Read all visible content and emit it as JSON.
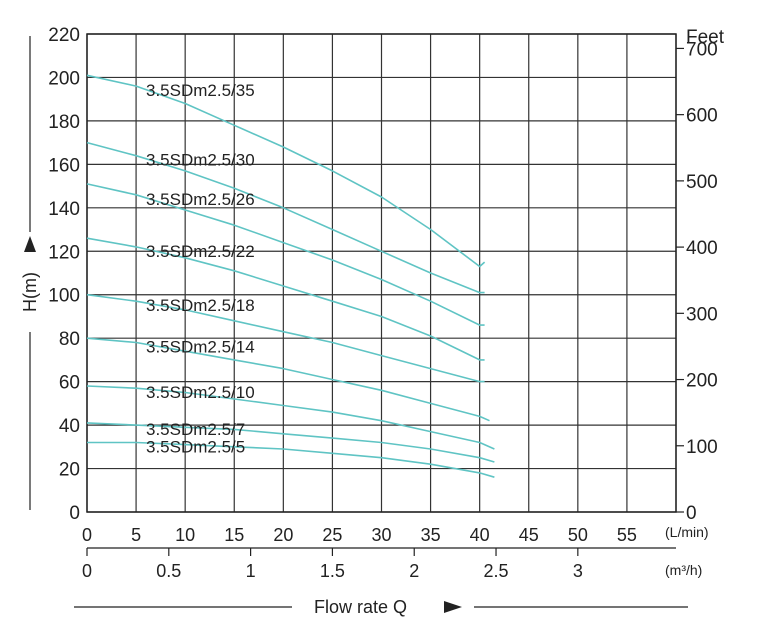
{
  "chart_data": {
    "type": "line",
    "y_left": {
      "label": "H(m)",
      "range": [
        0,
        220
      ],
      "ticks": [
        "0",
        "20",
        "40",
        "60",
        "80",
        "100",
        "120",
        "140",
        "160",
        "180",
        "200",
        "220"
      ]
    },
    "y_right": {
      "label": "Feet",
      "range_ft": [
        0,
        721.78
      ],
      "ticks": [
        "0",
        "100",
        "200",
        "300",
        "400",
        "500",
        "600",
        "700"
      ]
    },
    "x_lmin": {
      "unit": "(L/min)",
      "range": [
        0,
        60
      ],
      "ticks": [
        "0",
        "5",
        "10",
        "15",
        "20",
        "25",
        "30",
        "35",
        "40",
        "45",
        "50",
        "55"
      ]
    },
    "x_m3h": {
      "unit": "(m³/h)",
      "ticks": [
        "0",
        "0.5",
        "1",
        "1.5",
        "2",
        "2.5",
        "3"
      ]
    },
    "xlabel": "Flow rate Q",
    "grid": true,
    "curve_color": "#5fc4c4",
    "series": [
      {
        "name": "3.5SDm2.5/35",
        "x": [
          0,
          5,
          10,
          15,
          20,
          25,
          30,
          35,
          40,
          40.5
        ],
        "y": [
          201,
          196,
          188,
          178,
          168,
          157,
          145,
          130,
          113,
          115
        ]
      },
      {
        "name": "3.5SDm2.5/30",
        "x": [
          0,
          5,
          10,
          15,
          20,
          25,
          30,
          35,
          40,
          40.5
        ],
        "y": [
          170,
          164,
          157,
          149,
          140,
          130,
          120,
          110,
          101,
          101
        ]
      },
      {
        "name": "3.5SDm2.5/26",
        "x": [
          0,
          5,
          10,
          15,
          20,
          25,
          30,
          35,
          40,
          40.5
        ],
        "y": [
          151,
          146,
          139,
          132,
          124,
          116,
          107,
          97,
          86,
          86
        ]
      },
      {
        "name": "3.5SDm2.5/22",
        "x": [
          0,
          5,
          10,
          15,
          20,
          25,
          30,
          35,
          40,
          40.5
        ],
        "y": [
          126,
          122,
          117,
          111,
          104,
          97,
          90,
          81,
          70,
          70
        ]
      },
      {
        "name": "3.5SDm2.5/18",
        "x": [
          0,
          5,
          10,
          15,
          20,
          25,
          30,
          35,
          40,
          40.5
        ],
        "y": [
          100,
          97,
          93,
          88,
          83,
          78,
          72,
          66,
          60,
          60
        ]
      },
      {
        "name": "3.5SDm2.5/14",
        "x": [
          0,
          5,
          10,
          15,
          20,
          25,
          30,
          35,
          40,
          41
        ],
        "y": [
          80,
          78,
          74,
          70,
          66,
          61,
          56,
          50,
          44,
          42
        ]
      },
      {
        "name": "3.5SDm2.5/10",
        "x": [
          0,
          5,
          10,
          15,
          20,
          25,
          30,
          35,
          40,
          41.5
        ],
        "y": [
          58,
          57,
          55,
          52,
          49,
          46,
          42,
          37,
          32,
          29
        ]
      },
      {
        "name": "3.5SDm2.5/7",
        "x": [
          0,
          5,
          10,
          15,
          20,
          25,
          30,
          35,
          40,
          41.5
        ],
        "y": [
          41,
          40,
          39,
          38,
          36,
          34,
          32,
          29,
          25,
          23
        ]
      },
      {
        "name": "3.5SDm2.5/5",
        "x": [
          0,
          5,
          10,
          15,
          20,
          25,
          30,
          35,
          40,
          41.5
        ],
        "y": [
          32,
          32,
          31,
          30,
          29,
          27,
          25,
          22,
          18,
          16
        ]
      }
    ]
  }
}
